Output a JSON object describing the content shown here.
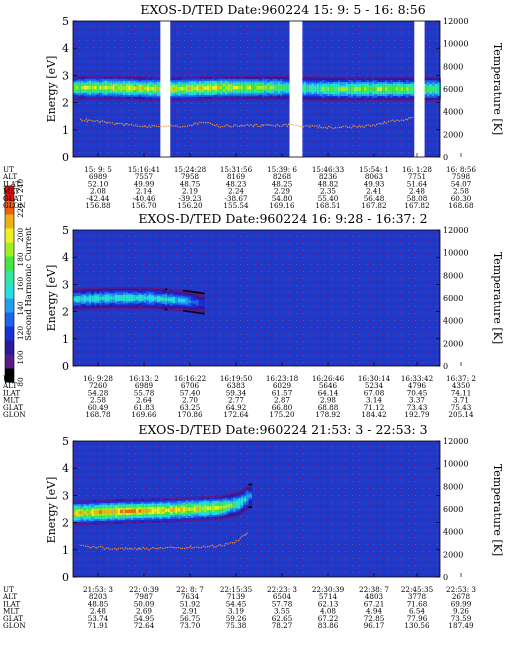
{
  "chart_data": [
    {
      "type": "heatmap",
      "title": "EXOS-D/TED   Date:960224  15: 9: 5 - 16: 8:56",
      "ylabel": "Energy [eV]",
      "y2label": "Temperature [K]",
      "ylim": [
        0,
        5
      ],
      "yticks": [
        "0",
        "1",
        "2",
        "3",
        "4",
        "5"
      ],
      "y2lim": [
        0,
        12000
      ],
      "y2ticks": [
        "0",
        "2000",
        "4000",
        "6000",
        "8000",
        "10000",
        "12000"
      ],
      "ephemeris_labels": [
        "UT",
        "ALT",
        "ILAT",
        "MLT",
        "GLAT",
        "GLON"
      ],
      "ephemeris": [
        [
          "15: 9: 5",
          "6989",
          "52.10",
          "2.08",
          "-42.44",
          "156.88"
        ],
        [
          "15:16:41",
          "7557",
          "49.99",
          "2.14",
          "-40.46",
          "156.70"
        ],
        [
          "15:24:28",
          "7958",
          "48.75",
          "2.19",
          "-39.23",
          "156.20"
        ],
        [
          "15:31:56",
          "8169",
          "48.23",
          "2.24",
          "-38.67",
          "155.54"
        ],
        [
          "15:39: 6",
          "8268",
          "48.25",
          "2.29",
          "54.80",
          "169.16"
        ],
        [
          "15:46:33",
          "8236",
          "48.82",
          "2.35",
          "55.40",
          "168.51"
        ],
        [
          "15:54: 1",
          "8063",
          "49.93",
          "2.41",
          "56.48",
          "167.82"
        ],
        [
          "16: 1:28",
          "7751",
          "51.64",
          "2.48",
          "58.08",
          "167.82"
        ],
        [
          "16: 8:56",
          "7598",
          "54.07",
          "2.58",
          "60.30",
          "168.68"
        ]
      ],
      "band": [
        [
          0,
          2.55
        ],
        [
          0.1,
          2.55
        ],
        [
          0.25,
          2.5
        ],
        [
          0.4,
          2.55
        ],
        [
          0.55,
          2.55
        ],
        [
          0.7,
          2.5
        ],
        [
          0.83,
          2.5
        ],
        [
          1,
          2.5
        ]
      ],
      "band_intensity": [
        [
          0,
          0.75
        ],
        [
          0.12,
          0.8
        ],
        [
          0.3,
          0.85
        ],
        [
          0.45,
          0.8
        ],
        [
          0.6,
          0.65
        ],
        [
          0.82,
          0.75
        ],
        [
          1,
          0.7
        ]
      ],
      "band_halfwidth": 0.45,
      "data_gaps": [
        [
          0.238,
          0.265
        ],
        [
          0.59,
          0.625
        ],
        [
          0.93,
          0.958
        ]
      ],
      "temperature": [
        [
          0.02,
          3300
        ],
        [
          0.1,
          3000
        ],
        [
          0.2,
          2700
        ],
        [
          0.3,
          2700
        ],
        [
          0.36,
          3100
        ],
        [
          0.4,
          2700
        ],
        [
          0.5,
          2800
        ],
        [
          0.6,
          2800
        ],
        [
          0.7,
          2600
        ],
        [
          0.8,
          2700
        ],
        [
          0.88,
          3200
        ],
        [
          0.93,
          3500
        ]
      ]
    },
    {
      "type": "heatmap",
      "title": "EXOS-D/TED   Date:960224  16: 9:28 - 16:37: 2",
      "ylabel": "Energy [eV]",
      "y2label": "Temperature [K]",
      "ylim": [
        0,
        5
      ],
      "yticks": [
        "0",
        "1",
        "2",
        "3",
        "4",
        "5"
      ],
      "y2lim": [
        0,
        12000
      ],
      "y2ticks": [
        "0",
        "2000",
        "4000",
        "6000",
        "8000",
        "10000",
        "12000"
      ],
      "ephemeris_labels": [
        "UT",
        "ALT",
        "ILAT",
        "MLT",
        "GLAT",
        "GLON"
      ],
      "ephemeris": [
        [
          "16: 9:28",
          "7260",
          "54.28",
          "2.58",
          "60.49",
          "168.78"
        ],
        [
          "16:13: 2",
          "6989",
          "55.78",
          "2.64",
          "61.83",
          "169.66"
        ],
        [
          "16:16:22",
          "6706",
          "57.40",
          "2.70",
          "63.25",
          "170.86"
        ],
        [
          "16:19:50",
          "6383",
          "59.34",
          "2.77",
          "64.92",
          "172.64"
        ],
        [
          "16:23:18",
          "6029",
          "61.57",
          "2.87",
          "66.80",
          "175.20"
        ],
        [
          "16:26:46",
          "5646",
          "64.14",
          "2.98",
          "68.88",
          "178.92"
        ],
        [
          "16:30:14",
          "5234",
          "67.08",
          "3.14",
          "71.12",
          "184.42"
        ],
        [
          "16:33:42",
          "4796",
          "70.45",
          "3.37",
          "73.43",
          "192.79"
        ],
        [
          "16:37: 2",
          "4350",
          "74.11",
          "3.71",
          "75.43",
          "205.14"
        ]
      ],
      "band": [
        [
          0,
          2.45
        ],
        [
          0.1,
          2.5
        ],
        [
          0.2,
          2.5
        ],
        [
          0.3,
          2.4
        ],
        [
          0.35,
          2.3
        ]
      ],
      "band_intensity": [
        [
          0,
          0.55
        ],
        [
          0.15,
          0.6
        ],
        [
          0.3,
          0.5
        ],
        [
          0.35,
          0.3
        ]
      ],
      "band_halfwidth": 0.4,
      "data_gaps": [],
      "temperature": []
    },
    {
      "type": "heatmap",
      "title": "EXOS-D/TED   Date:960224  21:53: 3 - 22:53: 3",
      "ylabel": "Energy [eV]",
      "y2label": "Temperature [K]",
      "ylim": [
        0,
        5
      ],
      "yticks": [
        "0",
        "1",
        "2",
        "3",
        "4",
        "5"
      ],
      "y2lim": [
        0,
        12000
      ],
      "y2ticks": [
        "0",
        "2000",
        "4000",
        "6000",
        "8000",
        "10000",
        "12000"
      ],
      "ephemeris_labels": [
        "UT",
        "ALT",
        "ILAT",
        "MLT",
        "GLAT",
        "GLON"
      ],
      "ephemeris": [
        [
          "21:53: 3",
          "8203",
          "48.85",
          "2.48",
          "53.74",
          "71.91"
        ],
        [
          "22: 0:39",
          "7987",
          "50.09",
          "2.69",
          "54.95",
          "72.64"
        ],
        [
          "22: 8: 7",
          "7634",
          "51.92",
          "2.91",
          "56.75",
          "73.70"
        ],
        [
          "22:15:35",
          "7139",
          "54.45",
          "3.19",
          "59.26",
          "75.38"
        ],
        [
          "22:23: 3",
          "6504",
          "57.78",
          "3.55",
          "62.65",
          "78.27"
        ],
        [
          "22:30:39",
          "5714",
          "62.13",
          "4.08",
          "67.22",
          "83.86"
        ],
        [
          "22:38: 7",
          "4803",
          "67.21",
          "4.94",
          "72.85",
          "96.17"
        ],
        [
          "22:45:35",
          "3778",
          "71.68",
          "6.54",
          "77.96",
          "130.56"
        ],
        [
          "22:53: 3",
          "2678",
          "69.99",
          "9.26",
          "73.59",
          "187.49"
        ]
      ],
      "band": [
        [
          0,
          2.35
        ],
        [
          0.1,
          2.4
        ],
        [
          0.25,
          2.45
        ],
        [
          0.4,
          2.55
        ],
        [
          0.45,
          2.7
        ],
        [
          0.48,
          3.0
        ]
      ],
      "band_intensity": [
        [
          0,
          0.85
        ],
        [
          0.1,
          0.95
        ],
        [
          0.25,
          0.9
        ],
        [
          0.4,
          0.8
        ],
        [
          0.47,
          0.55
        ],
        [
          0.49,
          0.3
        ]
      ],
      "band_halfwidth": 0.45,
      "data_gaps": [],
      "temperature": [
        [
          0.02,
          2700
        ],
        [
          0.1,
          2500
        ],
        [
          0.2,
          2500
        ],
        [
          0.3,
          2600
        ],
        [
          0.38,
          2700
        ],
        [
          0.44,
          3000
        ],
        [
          0.48,
          4000
        ]
      ]
    }
  ],
  "colorbar": {
    "label": "Second Harmonic Current",
    "ticks": [
      "80",
      "100",
      "120",
      "140",
      "160",
      "180",
      "200",
      "220",
      "240"
    ],
    "colors": [
      "#000000",
      "#5a1a8a",
      "#2a1aa0",
      "#1830d8",
      "#1e62f0",
      "#22a0f0",
      "#20e0e0",
      "#30e8a0",
      "#40e840",
      "#a0f020",
      "#f0f020",
      "#f0b010",
      "#f06010",
      "#e81010"
    ]
  },
  "colors": {
    "background": "#2035c8",
    "noise": "#5a1f8e",
    "temperature_line": "#ff9a30"
  }
}
